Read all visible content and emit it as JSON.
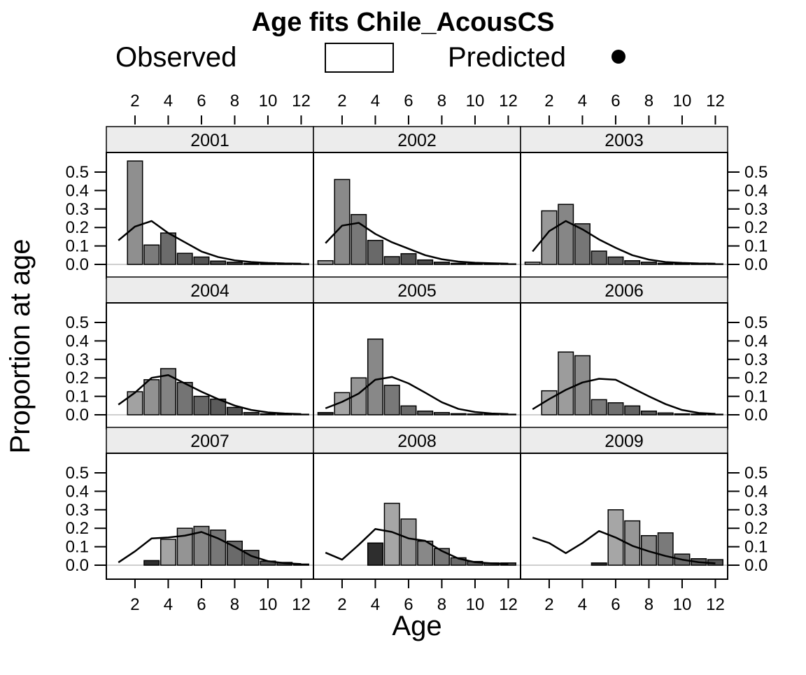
{
  "chart_data": {
    "type": "bar",
    "subtype": "lattice-age-composition-with-fit-line",
    "title": "Age fits Chile_AcousCS",
    "legend": {
      "observed_label": "Observed",
      "predicted_label": "Predicted"
    },
    "xlabel": "Age",
    "ylabel": "Proportion at age",
    "ages": [
      1,
      2,
      3,
      4,
      5,
      6,
      7,
      8,
      9,
      10,
      11,
      12
    ],
    "x_tick_labels": [
      "2",
      "4",
      "6",
      "8",
      "10",
      "12"
    ],
    "y_tick_labels": [
      "0.0",
      "0.1",
      "0.2",
      "0.3",
      "0.4",
      "0.5"
    ],
    "y_tick_values": [
      0.0,
      0.1,
      0.2,
      0.3,
      0.4,
      0.5
    ],
    "ylim": [
      -0.076,
      0.606
    ],
    "grid": false,
    "legend_position": "top",
    "colors": {
      "background": "#ffffff",
      "bar_outline": "#000000",
      "predicted_line": "#000000",
      "strip_background": "#ececec",
      "strip_border": "#000000",
      "panel_border": "#000000",
      "zero_line": "#cfcfcf",
      "legend_swatch_fill": "#ffffff",
      "legend_marker": "#000000"
    },
    "panels": [
      {
        "year": "2001",
        "observed": [
          0,
          0.56,
          0.105,
          0.17,
          0.06,
          0.04,
          0.018,
          0.012,
          0.006,
          0.004,
          0.003,
          0.003
        ],
        "predicted": [
          0.13,
          0.205,
          0.235,
          0.17,
          0.12,
          0.07,
          0.04,
          0.022,
          0.013,
          0.008,
          0.005,
          0.004
        ],
        "bar_colors": [
          null,
          "#8f8f8f",
          "#7b7b7b",
          "#6b6b6b",
          "#5e5e5e",
          "#535353",
          "#494949",
          "#414141",
          "#3a3a3a",
          "#343434",
          "#2f2f2f",
          "#2b2b2b"
        ]
      },
      {
        "year": "2002",
        "observed": [
          0.02,
          0.46,
          0.27,
          0.13,
          0.042,
          0.058,
          0.024,
          0.012,
          0.006,
          0.004,
          0.003,
          0.003
        ],
        "predicted": [
          0.115,
          0.21,
          0.225,
          0.165,
          0.12,
          0.085,
          0.05,
          0.028,
          0.015,
          0.009,
          0.006,
          0.004
        ],
        "bar_colors": [
          "#9b9b9b",
          "#8a8a8a",
          "#787878",
          "#696969",
          "#5c5c5c",
          "#525252",
          "#484848",
          "#404040",
          "#393939",
          "#333333",
          "#2e2e2e",
          "#2a2a2a"
        ]
      },
      {
        "year": "2003",
        "observed": [
          0.012,
          0.29,
          0.325,
          0.22,
          0.072,
          0.04,
          0.02,
          0.012,
          0.006,
          0.005,
          0.004,
          0.003
        ],
        "predicted": [
          0.07,
          0.18,
          0.235,
          0.19,
          0.135,
          0.09,
          0.05,
          0.026,
          0.013,
          0.008,
          0.005,
          0.004
        ],
        "bar_colors": [
          "#a5a5a5",
          "#989898",
          "#868686",
          "#767676",
          "#686868",
          "#5d5d5d",
          "#535353",
          "#4a4a4a",
          "#424242",
          "#3b3b3b",
          "#353535",
          "#303030"
        ]
      },
      {
        "year": "2004",
        "observed": [
          0,
          0.125,
          0.19,
          0.25,
          0.175,
          0.1,
          0.085,
          0.04,
          0.012,
          0.005,
          0.004,
          0.003
        ],
        "predicted": [
          0.055,
          0.12,
          0.2,
          0.215,
          0.17,
          0.125,
          0.085,
          0.05,
          0.026,
          0.013,
          0.007,
          0.004
        ],
        "bar_colors": [
          null,
          "#a2a2a2",
          "#919191",
          "#838383",
          "#747474",
          "#676767",
          "#5b5b5b",
          "#515151",
          "#474747",
          "#3f3f3f",
          "#383838",
          "#323232"
        ]
      },
      {
        "year": "2005",
        "observed": [
          0.012,
          0.12,
          0.2,
          0.41,
          0.16,
          0.048,
          0.02,
          0.012,
          0.006,
          0.004,
          0.003,
          0.003
        ],
        "predicted": [
          0.035,
          0.07,
          0.115,
          0.19,
          0.205,
          0.17,
          0.12,
          0.068,
          0.032,
          0.015,
          0.007,
          0.004
        ],
        "bar_colors": [
          "#303030",
          "#a5a5a5",
          "#969696",
          "#888888",
          "#787878",
          "#6a6a6a",
          "#5f5f5f",
          "#555555",
          "#4b4b4b",
          "#434343",
          "#3c3c3c",
          "#353535"
        ]
      },
      {
        "year": "2006",
        "observed": [
          0,
          0.13,
          0.34,
          0.32,
          0.082,
          0.065,
          0.048,
          0.02,
          0.01,
          0.005,
          0.004,
          0.003
        ],
        "predicted": [
          0.03,
          0.085,
          0.135,
          0.175,
          0.195,
          0.19,
          0.145,
          0.1,
          0.058,
          0.026,
          0.01,
          0.005
        ],
        "bar_colors": [
          null,
          "#a6a6a6",
          "#9c9c9c",
          "#8d8d8d",
          "#7b7b7b",
          "#6f6f6f",
          "#636363",
          "#585858",
          "#4f4f4f",
          "#474747",
          "#3f3f3f",
          "#383838"
        ]
      },
      {
        "year": "2007",
        "observed": [
          0,
          0,
          0.025,
          0.14,
          0.2,
          0.21,
          0.19,
          0.13,
          0.08,
          0.022,
          0.015,
          0.006
        ],
        "predicted": [
          0.015,
          0.075,
          0.145,
          0.15,
          0.16,
          0.18,
          0.145,
          0.1,
          0.05,
          0.022,
          0.011,
          0.006
        ],
        "bar_colors": [
          null,
          null,
          "#2e2e2e",
          "#a4a4a4",
          "#949494",
          "#868686",
          "#777777",
          "#6a6a6a",
          "#5e5e5e",
          "#545454",
          "#4a4a4a",
          "#303030"
        ]
      },
      {
        "year": "2008",
        "observed": [
          0,
          0,
          0,
          0.12,
          0.335,
          0.25,
          0.13,
          0.09,
          0.04,
          0.02,
          0.012,
          0.012
        ],
        "predicted": [
          0.068,
          0.03,
          0.11,
          0.196,
          0.18,
          0.145,
          0.132,
          0.077,
          0.036,
          0.016,
          0.01,
          0.006
        ],
        "bar_colors": [
          null,
          null,
          null,
          "#2e2e2e",
          "#a6a6a6",
          "#969696",
          "#888888",
          "#787878",
          "#6a6a6a",
          "#5f5f5f",
          "#555555",
          "#4b4b4b"
        ]
      },
      {
        "year": "2009",
        "observed": [
          0,
          0,
          0,
          0,
          0.012,
          0.3,
          0.24,
          0.16,
          0.175,
          0.06,
          0.035,
          0.03
        ],
        "predicted": [
          0.15,
          0.12,
          0.065,
          0.12,
          0.185,
          0.15,
          0.105,
          0.075,
          0.05,
          0.03,
          0.016,
          0.01
        ],
        "bar_colors": [
          null,
          null,
          null,
          null,
          "#2e2e2e",
          "#a6a6a6",
          "#969696",
          "#888888",
          "#7a7a7a",
          "#6c6c6c",
          "#606060",
          "#565656"
        ]
      }
    ]
  }
}
